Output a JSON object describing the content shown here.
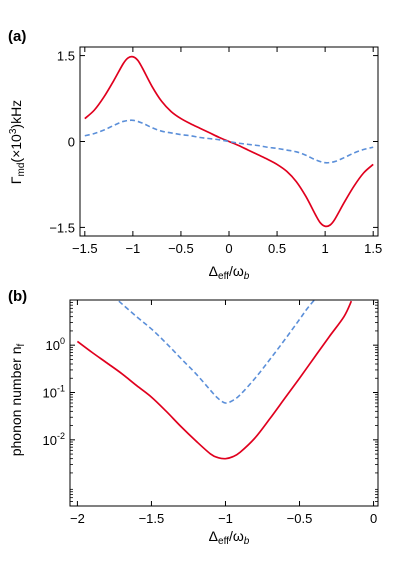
{
  "chart_data": [
    {
      "panel": "(a)",
      "type": "line",
      "xlabel": "Δ",
      "xlabel_sub": "eff",
      "xlabel_tail": "/ω",
      "xlabel_tail_sub": "b",
      "ylabel": "Γ",
      "ylabel_sub": "md",
      "ylabel_mid": "(×10",
      "ylabel_sup": "3",
      "ylabel_tail": ")kHz",
      "xlim": [
        -1.55,
        1.55
      ],
      "ylim": [
        -1.65,
        1.65
      ],
      "xticks": [
        -1.5,
        -1,
        -0.5,
        0,
        0.5,
        1,
        1.5
      ],
      "xtick_labels": [
        "−1.5",
        "−1",
        "−0.5",
        "0",
        "0.5",
        "1",
        "1.5"
      ],
      "yticks": [
        1.5,
        0,
        -1.5
      ],
      "ytick_labels": [
        "1.5",
        "0",
        "−1.5"
      ],
      "series": [
        {
          "color": "#e0001e",
          "dash": "solid",
          "x": [
            -1.5,
            -1.4,
            -1.3,
            -1.2,
            -1.1,
            -1.05,
            -1.0,
            -0.95,
            -0.9,
            -0.8,
            -0.7,
            -0.6,
            -0.5,
            -0.4,
            -0.3,
            -0.2,
            -0.1,
            0,
            0.1,
            0.2,
            0.3,
            0.4,
            0.5,
            0.6,
            0.7,
            0.8,
            0.9,
            0.95,
            1.0,
            1.05,
            1.1,
            1.2,
            1.3,
            1.4,
            1.5
          ],
          "y": [
            0.4,
            0.55,
            0.78,
            1.06,
            1.36,
            1.46,
            1.48,
            1.42,
            1.28,
            0.96,
            0.7,
            0.52,
            0.4,
            0.31,
            0.23,
            0.15,
            0.07,
            0,
            -0.07,
            -0.15,
            -0.23,
            -0.31,
            -0.4,
            -0.52,
            -0.7,
            -0.96,
            -1.28,
            -1.42,
            -1.48,
            -1.46,
            -1.36,
            -1.06,
            -0.78,
            -0.55,
            -0.4
          ]
        },
        {
          "color": "#5b8fd9",
          "dash": "dashed",
          "x": [
            -1.5,
            -1.4,
            -1.3,
            -1.2,
            -1.1,
            -1.0,
            -0.9,
            -0.8,
            -0.7,
            -0.6,
            -0.5,
            -0.4,
            -0.3,
            -0.2,
            -0.1,
            0,
            0.1,
            0.2,
            0.3,
            0.4,
            0.5,
            0.6,
            0.7,
            0.8,
            0.9,
            1.0,
            1.1,
            1.2,
            1.3,
            1.4,
            1.5
          ],
          "y": [
            0.1,
            0.14,
            0.2,
            0.28,
            0.35,
            0.37,
            0.32,
            0.24,
            0.18,
            0.15,
            0.12,
            0.1,
            0.07,
            0.05,
            0.03,
            0,
            -0.03,
            -0.05,
            -0.07,
            -0.1,
            -0.12,
            -0.15,
            -0.18,
            -0.24,
            -0.32,
            -0.37,
            -0.35,
            -0.28,
            -0.2,
            -0.14,
            -0.1
          ]
        }
      ]
    },
    {
      "panel": "(b)",
      "type": "line",
      "yscale": "log",
      "xlabel": "Δ",
      "xlabel_sub": "eff",
      "xlabel_tail": "/ω",
      "xlabel_tail_sub": "b",
      "ylabel": "phonon number n",
      "ylabel_sub": "f",
      "xlim": [
        -2.05,
        0.03
      ],
      "ylim": [
        0.0004,
        9
      ],
      "xticks": [
        -2,
        -1.5,
        -1,
        -0.5,
        0
      ],
      "xtick_labels": [
        "−2",
        "−1.5",
        "−1",
        "−0.5",
        "0"
      ],
      "yticks": [
        1,
        0.1,
        0.01
      ],
      "ytick_labels": [
        "10",
        "10",
        "10"
      ],
      "ytick_sups": [
        "0",
        "-1",
        "-2"
      ],
      "series": [
        {
          "color": "#e0001e",
          "dash": "solid",
          "x": [
            -2.0,
            -1.9,
            -1.8,
            -1.7,
            -1.6,
            -1.5,
            -1.4,
            -1.3,
            -1.2,
            -1.1,
            -1.05,
            -1.0,
            -0.95,
            -0.9,
            -0.8,
            -0.7,
            -0.6,
            -0.5,
            -0.4,
            -0.3,
            -0.2,
            -0.15
          ],
          "y": [
            1.2,
            0.7,
            0.42,
            0.25,
            0.14,
            0.08,
            0.04,
            0.019,
            0.0095,
            0.005,
            0.0042,
            0.004,
            0.0044,
            0.0055,
            0.011,
            0.028,
            0.075,
            0.2,
            0.55,
            1.5,
            4,
            8.5
          ]
        },
        {
          "color": "#5b8fd9",
          "dash": "dashed",
          "x": [
            -1.72,
            -1.6,
            -1.5,
            -1.4,
            -1.3,
            -1.2,
            -1.1,
            -1.05,
            -1.0,
            -0.95,
            -0.9,
            -0.8,
            -0.7,
            -0.6,
            -0.5,
            -0.45,
            -0.4
          ],
          "y": [
            8.5,
            4,
            2.2,
            1.1,
            0.52,
            0.25,
            0.11,
            0.075,
            0.06,
            0.068,
            0.09,
            0.2,
            0.5,
            1.3,
            3.5,
            5.8,
            9
          ]
        }
      ]
    }
  ]
}
